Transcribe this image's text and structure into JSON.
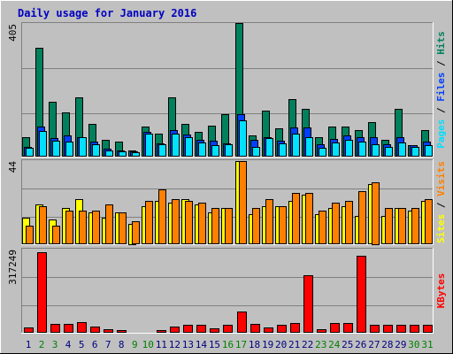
{
  "chart_data": [
    {
      "type": "bar",
      "title": "Daily usage for January 2016",
      "panel": "top",
      "ymax_label": "405",
      "ylim": [
        0,
        405
      ],
      "legend": [
        "Pages",
        "Files",
        "Hits"
      ],
      "legend_separators": [
        " / ",
        " / "
      ],
      "categories": [
        "1",
        "2",
        "3",
        "4",
        "5",
        "6",
        "7",
        "8",
        "9",
        "10",
        "11",
        "12",
        "13",
        "14",
        "15",
        "16",
        "17",
        "18",
        "19",
        "20",
        "21",
        "22",
        "23",
        "24",
        "25",
        "26",
        "27",
        "28",
        "29",
        "30",
        "31"
      ],
      "series": [
        {
          "name": "Hits",
          "values": [
            60,
            330,
            165,
            135,
            180,
            100,
            50,
            45,
            20,
            90,
            70,
            180,
            100,
            75,
            95,
            128,
            405,
            65,
            140,
            85,
            175,
            145,
            60,
            90,
            90,
            80,
            105,
            52,
            145,
            35,
            80
          ]
        },
        {
          "name": "Files",
          "values": [
            30,
            90,
            55,
            65,
            60,
            45,
            25,
            20,
            15,
            75,
            40,
            80,
            68,
            52,
            47,
            40,
            128,
            50,
            60,
            48,
            88,
            88,
            37,
            53,
            65,
            58,
            60,
            37,
            59,
            35,
            45
          ]
        },
        {
          "name": "Pages",
          "values": [
            28,
            78,
            48,
            45,
            58,
            38,
            20,
            15,
            13,
            70,
            38,
            70,
            58,
            42,
            35,
            38,
            110,
            30,
            55,
            40,
            70,
            60,
            28,
            42,
            50,
            45,
            38,
            30,
            42,
            30,
            35
          ]
        }
      ]
    },
    {
      "type": "bar",
      "panel": "middle",
      "ymax_label": "44",
      "ylim": [
        0,
        44
      ],
      "legend": [
        "Sites",
        "Visits"
      ],
      "legend_separators": [
        " / "
      ],
      "categories": [
        "1",
        "2",
        "3",
        "4",
        "5",
        "6",
        "7",
        "8",
        "9",
        "10",
        "11",
        "12",
        "13",
        "14",
        "15",
        "16",
        "17",
        "18",
        "19",
        "20",
        "21",
        "22",
        "23",
        "24",
        "25",
        "26",
        "27",
        "28",
        "29",
        "30",
        "31"
      ],
      "series": [
        {
          "name": "Visits",
          "values": [
            10,
            20,
            10,
            18,
            18,
            18,
            21,
            17,
            12,
            23,
            29,
            24,
            23,
            22,
            19,
            19,
            44,
            19,
            24,
            20,
            27,
            27,
            18,
            22,
            23,
            28,
            33,
            19,
            19,
            19,
            24
          ]
        },
        {
          "name": "Sites",
          "values": [
            14,
            21,
            13,
            19,
            24,
            17,
            14,
            17,
            11,
            20,
            23,
            22,
            24,
            21,
            17,
            19,
            44,
            16,
            20,
            20,
            23,
            26,
            16,
            19,
            20,
            15,
            32,
            15,
            19,
            18,
            23
          ]
        }
      ]
    },
    {
      "type": "bar",
      "panel": "bottom",
      "ymax_label": "317249",
      "ylim": [
        0,
        317249
      ],
      "legend": [
        "KBytes"
      ],
      "categories": [
        "1",
        "2",
        "3",
        "4",
        "5",
        "6",
        "7",
        "8",
        "9",
        "10",
        "11",
        "12",
        "13",
        "14",
        "15",
        "16",
        "17",
        "18",
        "19",
        "20",
        "21",
        "22",
        "23",
        "24",
        "25",
        "26",
        "27",
        "28",
        "29",
        "30",
        "31"
      ],
      "series": [
        {
          "name": "KBytes",
          "values": [
            20000,
            317249,
            35000,
            35000,
            43000,
            24000,
            13000,
            12000,
            4000,
            4000,
            10000,
            23000,
            32000,
            32000,
            18000,
            32000,
            83000,
            35000,
            20000,
            32000,
            37000,
            225000,
            13000,
            40000,
            40000,
            305000,
            32000,
            32000,
            32000,
            32000,
            32000
          ]
        }
      ],
      "weekend_days": [
        "2",
        "3",
        "9",
        "10",
        "16",
        "17",
        "23",
        "24",
        "30",
        "31"
      ]
    }
  ],
  "colors": {
    "hits": "#00805c",
    "files": "#0040ff",
    "pages": "#00e0ff",
    "sites": "#ffff00",
    "visits": "#ff8000",
    "kbytes": "#ff0000",
    "title": "#0000c0",
    "weekday_label": "#000080",
    "weekend_label": "#008000"
  }
}
